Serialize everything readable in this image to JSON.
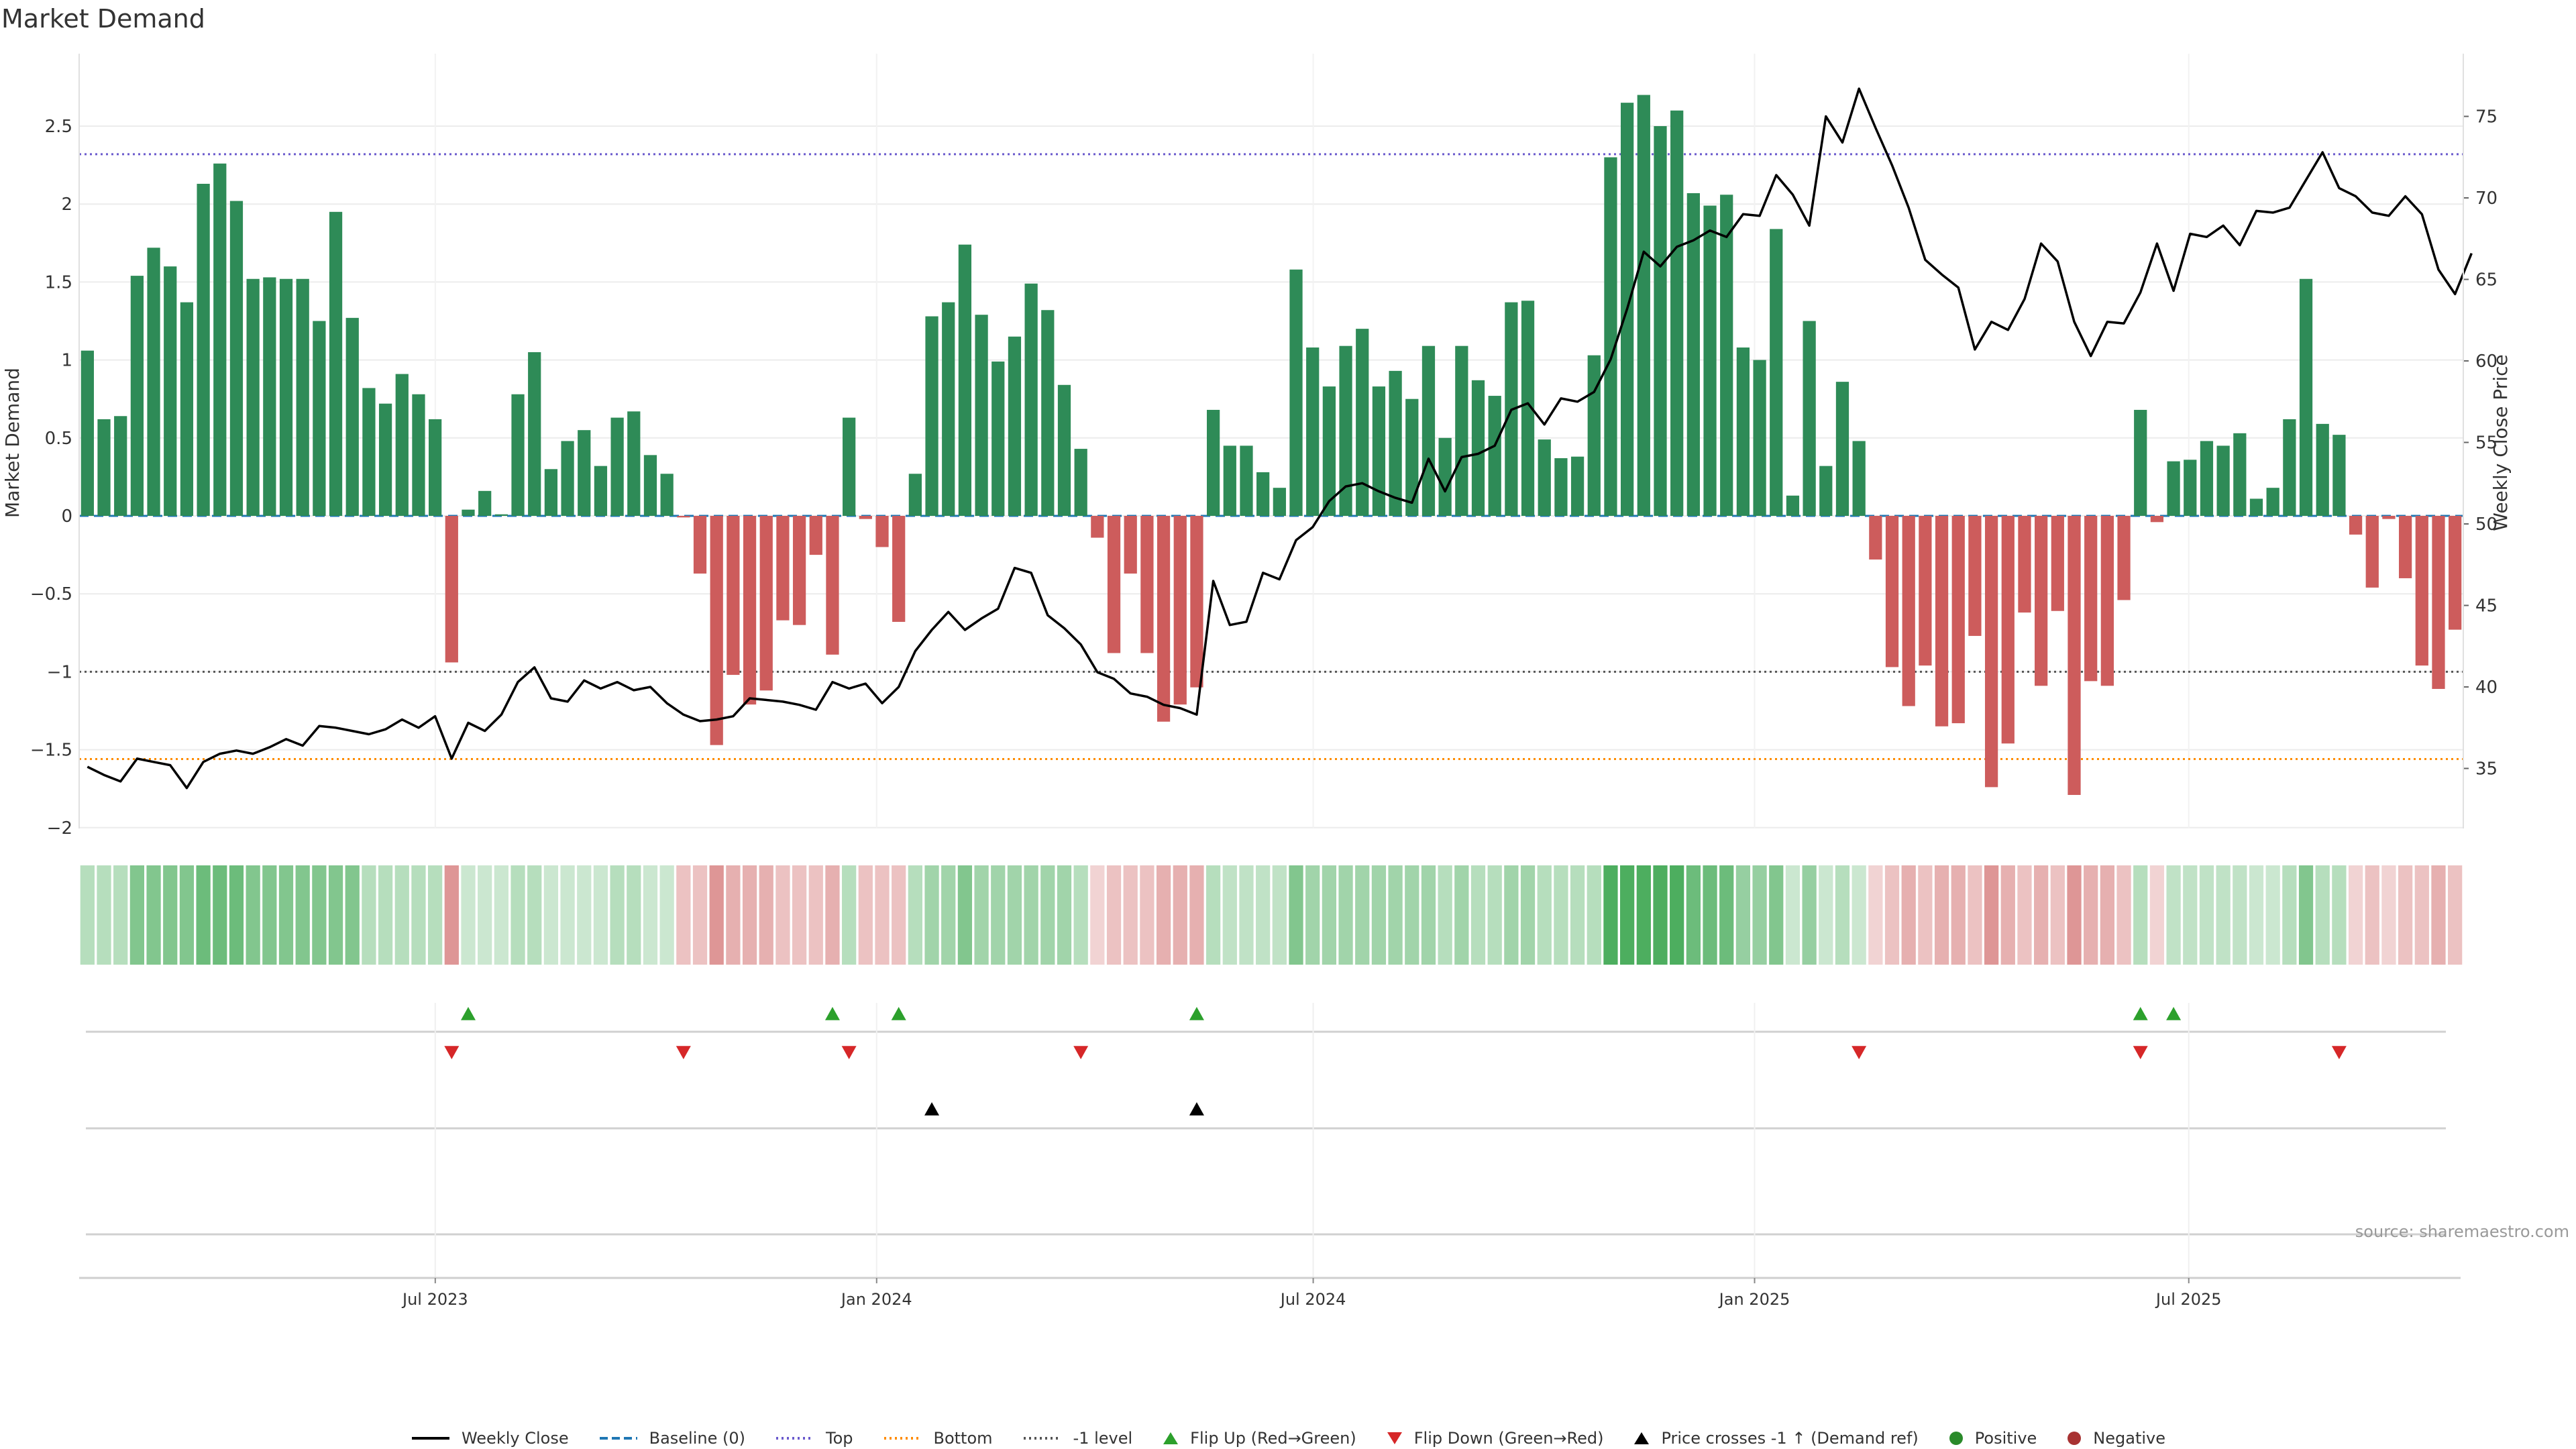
{
  "title": "Market Demand",
  "source": "source: sharemaestro.com",
  "colors": {
    "positive": "#2e8b57",
    "negative": "#cd5c5c",
    "price": "#000000",
    "baseline": "#1f77b4",
    "top": "#6a5acd",
    "bottom": "#ff8c00",
    "minus_one": "#555555",
    "flip_up": "#2ca02c",
    "flip_down": "#d62728",
    "cross": "#000000"
  },
  "chart_data": {
    "type": "bar",
    "title": "Market Demand",
    "ylabel": "Market Demand",
    "y2label": "Weekly Close Price",
    "ylim": [
      -2.05,
      2.8
    ],
    "y2lim": [
      31.3,
      77.8
    ],
    "yticks": [
      "2.5",
      "2",
      "1.5",
      "1",
      "0.5",
      "0",
      "−0.5",
      "−1",
      "−1.5",
      "−2"
    ],
    "y2ticks": [
      "75",
      "70",
      "65",
      "60",
      "55",
      "50",
      "45",
      "40",
      "35"
    ],
    "xticks": [
      "Jul 2023",
      "Jan 2024",
      "Jul 2024",
      "Jan 2025",
      "Jul 2025"
    ],
    "x_start": "2023-02-06",
    "x_end": "2025-10-20",
    "reference_lines": {
      "baseline": 0,
      "top": 2.32,
      "bottom": -1.56,
      "minus_one": -1.0
    },
    "demand": [
      1.06,
      0.62,
      0.64,
      1.54,
      1.72,
      1.6,
      1.37,
      2.13,
      2.26,
      2.02,
      1.52,
      1.53,
      1.52,
      1.52,
      1.25,
      1.95,
      1.27,
      0.82,
      0.72,
      0.91,
      0.78,
      0.62,
      -0.94,
      0.04,
      0.16,
      0.01,
      0.78,
      1.05,
      0.3,
      0.48,
      0.55,
      0.32,
      0.63,
      0.67,
      0.39,
      0.27,
      -0.01,
      -0.37,
      -1.47,
      -1.02,
      -1.21,
      -1.12,
      -0.67,
      -0.7,
      -0.25,
      -0.89,
      0.63,
      -0.02,
      -0.2,
      -0.68,
      0.27,
      1.28,
      1.37,
      1.74,
      1.29,
      0.99,
      1.15,
      1.49,
      1.32,
      0.84,
      0.43,
      -0.14,
      -0.88,
      -0.37,
      -0.88,
      -1.32,
      -1.21,
      -1.1,
      0.68,
      0.45,
      0.45,
      0.28,
      0.18,
      1.58,
      1.08,
      0.83,
      1.09,
      1.2,
      0.83,
      0.93,
      0.75,
      1.09,
      0.5,
      1.09,
      0.87,
      0.77,
      1.37,
      1.38,
      0.49,
      0.37,
      0.38,
      1.03,
      2.3,
      2.65,
      2.7,
      2.5,
      2.6,
      2.07,
      1.99,
      2.06,
      1.08,
      1.0,
      1.84,
      0.13,
      1.25,
      0.32,
      0.86,
      0.48,
      -0.28,
      -0.97,
      -1.22,
      -0.96,
      -1.35,
      -1.33,
      -0.77,
      -1.74,
      -1.46,
      -0.62,
      -1.09,
      -0.61,
      -1.79,
      -1.06,
      -1.09,
      -0.54,
      0.68,
      -0.04,
      0.35,
      0.36,
      0.48,
      0.45,
      0.53,
      0.11,
      0.18,
      0.62,
      1.52,
      0.59,
      0.52,
      -0.12,
      -0.46,
      -0.02,
      -0.4,
      -0.96,
      -1.11,
      -0.73
    ],
    "close": [
      35.1,
      34.6,
      34.2,
      35.6,
      35.4,
      35.2,
      33.8,
      35.4,
      35.9,
      36.1,
      35.9,
      36.3,
      36.8,
      36.4,
      37.6,
      37.5,
      37.3,
      37.1,
      37.4,
      38.0,
      37.5,
      38.2,
      35.6,
      37.8,
      37.3,
      38.3,
      40.3,
      41.2,
      39.3,
      39.1,
      40.4,
      39.9,
      40.3,
      39.8,
      40.0,
      39.0,
      38.3,
      37.9,
      38.0,
      38.2,
      39.3,
      39.2,
      39.1,
      38.9,
      38.6,
      40.3,
      39.9,
      40.2,
      39.0,
      40.0,
      42.2,
      43.5,
      44.6,
      43.5,
      44.2,
      44.8,
      47.3,
      47.0,
      44.4,
      43.6,
      42.6,
      40.9,
      40.5,
      39.6,
      39.4,
      38.9,
      38.7,
      38.3,
      46.5,
      43.8,
      44.0,
      47.0,
      46.6,
      49.0,
      49.8,
      51.4,
      52.3,
      52.5,
      52.0,
      51.6,
      51.3,
      54.0,
      52.0,
      54.1,
      54.3,
      54.8,
      57.0,
      57.4,
      56.1,
      57.7,
      57.5,
      58.1,
      60.1,
      63.2,
      66.7,
      65.8,
      67.0,
      67.4,
      68.0,
      67.6,
      69.0,
      68.9,
      71.4,
      70.2,
      68.3,
      75.0,
      73.4,
      76.7,
      74.3,
      72.0,
      69.4,
      66.2,
      65.3,
      64.5,
      60.7,
      62.4,
      61.9,
      63.8,
      67.2,
      66.1,
      62.4,
      60.3,
      62.4,
      62.3,
      64.2,
      67.2,
      64.3,
      67.8,
      67.6,
      68.3,
      67.1,
      69.2,
      69.1,
      69.4,
      71.1,
      72.8,
      70.6,
      70.1,
      69.1,
      68.9,
      70.1,
      69.0,
      65.6,
      64.1,
      66.6
    ],
    "momentum_shade": [
      0.35,
      0.35,
      0.35,
      0.6,
      0.6,
      0.6,
      0.6,
      0.7,
      0.7,
      0.7,
      0.6,
      0.6,
      0.6,
      0.6,
      0.6,
      0.6,
      0.6,
      0.35,
      0.35,
      0.35,
      0.35,
      0.35,
      0.6,
      0.25,
      0.25,
      0.25,
      0.35,
      0.35,
      0.25,
      0.25,
      0.25,
      0.25,
      0.35,
      0.35,
      0.25,
      0.25,
      0.35,
      0.35,
      0.6,
      0.45,
      0.45,
      0.45,
      0.35,
      0.35,
      0.35,
      0.45,
      0.35,
      0.35,
      0.35,
      0.35,
      0.35,
      0.45,
      0.45,
      0.6,
      0.45,
      0.45,
      0.45,
      0.45,
      0.45,
      0.45,
      0.35,
      0.25,
      0.35,
      0.35,
      0.35,
      0.45,
      0.45,
      0.45,
      0.35,
      0.3,
      0.3,
      0.3,
      0.3,
      0.6,
      0.45,
      0.45,
      0.45,
      0.45,
      0.45,
      0.45,
      0.45,
      0.45,
      0.35,
      0.45,
      0.35,
      0.35,
      0.45,
      0.45,
      0.35,
      0.35,
      0.35,
      0.35,
      0.85,
      0.85,
      0.85,
      0.85,
      0.85,
      0.7,
      0.7,
      0.7,
      0.5,
      0.5,
      0.6,
      0.25,
      0.5,
      0.25,
      0.35,
      0.25,
      0.25,
      0.35,
      0.45,
      0.35,
      0.45,
      0.45,
      0.35,
      0.6,
      0.45,
      0.35,
      0.45,
      0.35,
      0.6,
      0.45,
      0.45,
      0.35,
      0.35,
      0.25,
      0.3,
      0.3,
      0.3,
      0.3,
      0.3,
      0.25,
      0.25,
      0.35,
      0.6,
      0.35,
      0.35,
      0.25,
      0.35,
      0.25,
      0.35,
      0.35,
      0.45,
      0.35
    ],
    "markers": {
      "flip_up": [
        23,
        45,
        49,
        67,
        124,
        126
      ],
      "flip_down": [
        22,
        36,
        46,
        60,
        107,
        124,
        136
      ],
      "price_cross": [
        51,
        67
      ]
    }
  },
  "legend": [
    {
      "key": "close",
      "label": "Weekly Close",
      "symbol": "line-solid"
    },
    {
      "key": "baseline",
      "label": "Baseline (0)",
      "symbol": "line-dashed"
    },
    {
      "key": "top",
      "label": "Top",
      "symbol": "line-dotted"
    },
    {
      "key": "bottom",
      "label": "Bottom",
      "symbol": "line-dotted"
    },
    {
      "key": "minus_one",
      "label": "-1 level",
      "symbol": "line-dotted"
    },
    {
      "key": "flip_up",
      "label": "Flip Up (Red→Green)",
      "symbol": "triangle-up"
    },
    {
      "key": "flip_down",
      "label": "Flip Down (Green→Red)",
      "symbol": "triangle-down"
    },
    {
      "key": "cross",
      "label": "Price crosses -1 ↑ (Demand ref)",
      "symbol": "triangle-up"
    },
    {
      "key": "positive",
      "label": "Positive",
      "symbol": "dot"
    },
    {
      "key": "negative",
      "label": "Negative",
      "symbol": "dot"
    }
  ]
}
